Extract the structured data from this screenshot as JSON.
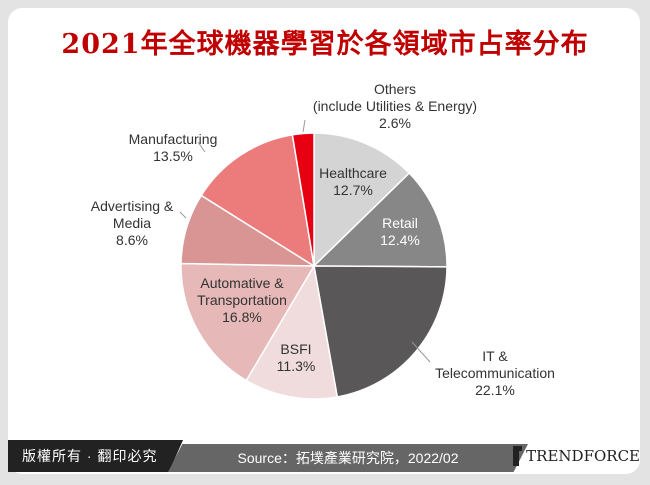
{
  "title": "2021年全球機器學習於各領域市占率分布",
  "chart_data": {
    "type": "pie",
    "title": "2021年全球機器學習於各領域市占率分布",
    "unit": "%",
    "slices": [
      {
        "label": "Healthcare",
        "value": 12.7,
        "display": "12.7%",
        "color": "#d4d4d4"
      },
      {
        "label": "Retail",
        "value": 12.4,
        "display": "12.4%",
        "color": "#878787"
      },
      {
        "label": "IT & Telecommunication",
        "value": 22.1,
        "display": "22.1%",
        "color": "#595757"
      },
      {
        "label": "BSFI",
        "value": 11.3,
        "display": "11.3%",
        "color": "#f0dcdc"
      },
      {
        "label": "Automative & Transportation",
        "value": 16.8,
        "display": "16.8%",
        "color": "#e6b8b8"
      },
      {
        "label": "Advertising & Media",
        "value": 8.6,
        "display": "8.6%",
        "color": "#d99494"
      },
      {
        "label": "Manufacturing",
        "value": 13.5,
        "display": "13.5%",
        "color": "#ec7b7b"
      },
      {
        "label": "Others (include Utilities & Energy)",
        "value": 2.6,
        "display": "2.6%",
        "color": "#e60012"
      }
    ]
  },
  "footer": {
    "rights": "版權所有 · 翻印必究",
    "source": "Source：拓墣產業研究院，2022/02",
    "brand": "TRENDFORCE"
  }
}
